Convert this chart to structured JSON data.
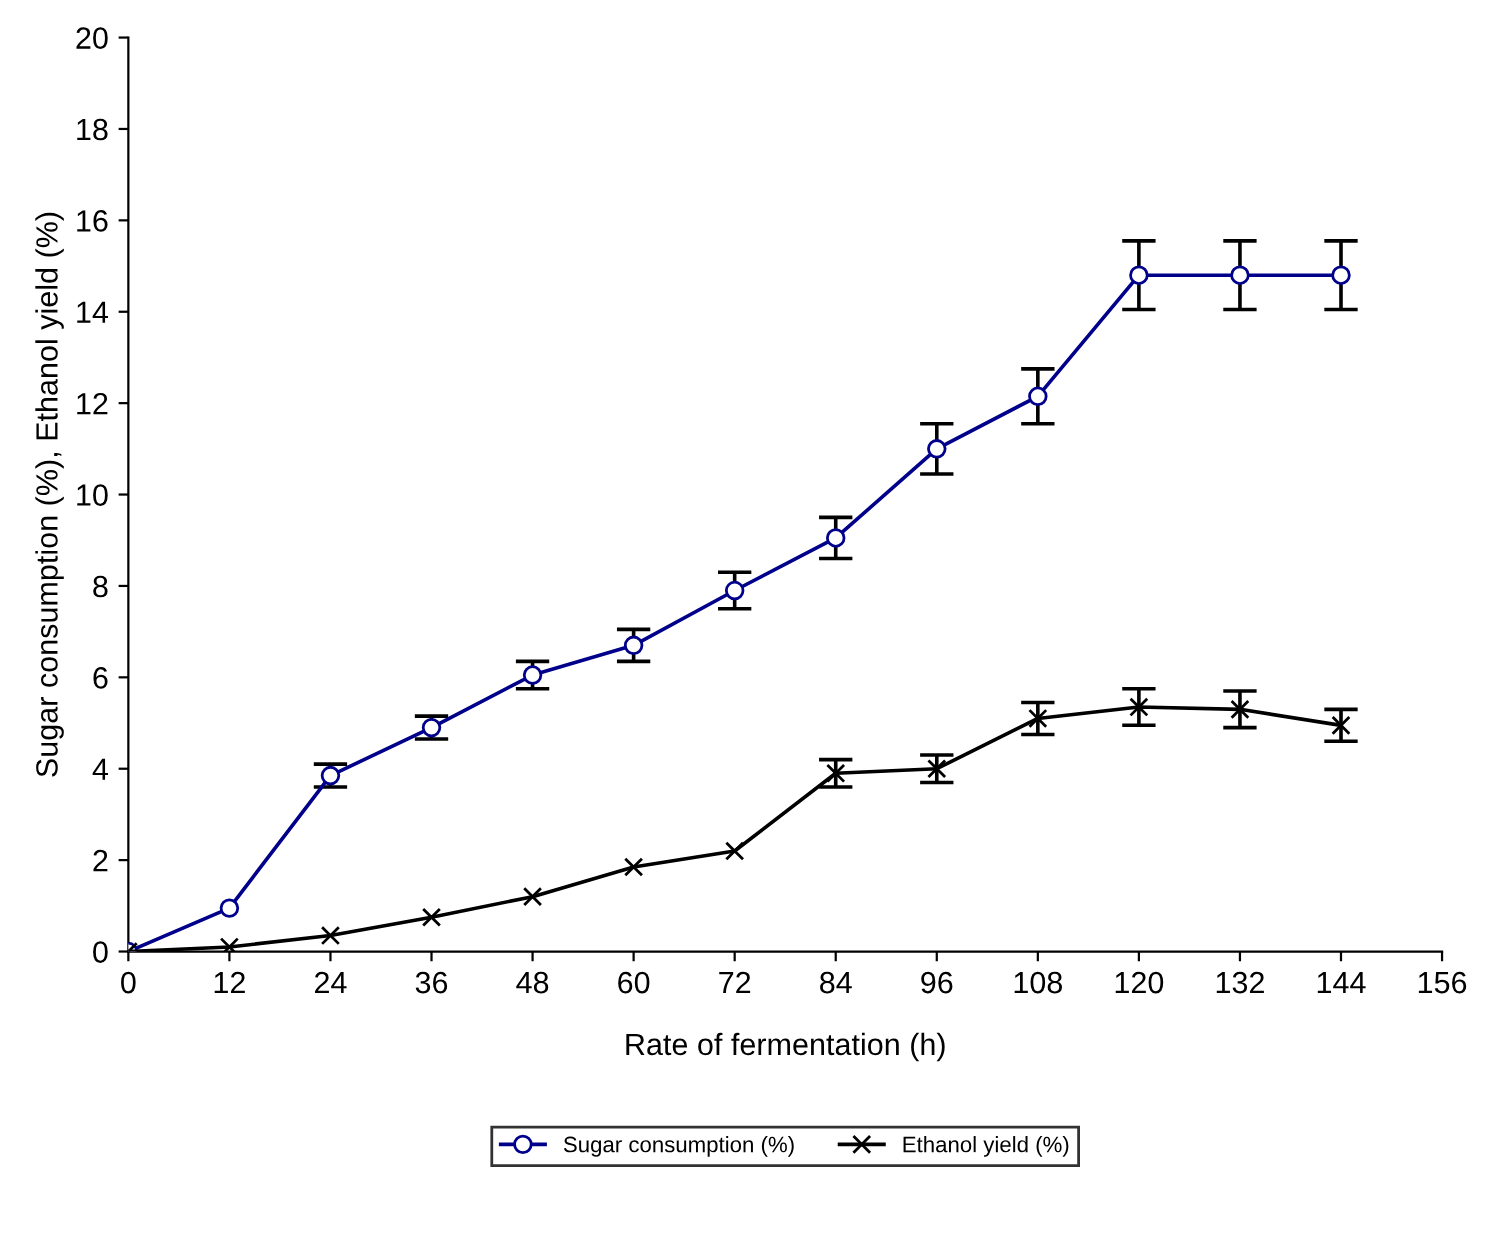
{
  "chart_data": {
    "type": "line",
    "xlabel": "Rate of fermentation (h)",
    "ylabel": "Sugar consumption (%), Ethanol yield (%)",
    "x": [
      0,
      12,
      24,
      36,
      48,
      60,
      72,
      84,
      96,
      108,
      120,
      132,
      144
    ],
    "series": [
      {
        "name": "Sugar consumption (%)",
        "color": "#00008b",
        "marker": "circle",
        "values": [
          0,
          0.95,
          3.85,
          4.9,
          6.05,
          6.7,
          7.9,
          9.05,
          11.0,
          12.15,
          14.8,
          14.8,
          14.8
        ],
        "errors": [
          null,
          null,
          0.25,
          0.25,
          0.3,
          0.35,
          0.4,
          0.45,
          0.55,
          0.6,
          0.75,
          0.75,
          0.75
        ]
      },
      {
        "name": "Ethanol yield (%)",
        "color": "#000000",
        "marker": "cross",
        "values": [
          0,
          0.1,
          0.35,
          0.75,
          1.2,
          1.85,
          2.2,
          3.9,
          4.0,
          5.1,
          5.35,
          5.3,
          4.95
        ],
        "errors": [
          null,
          null,
          null,
          null,
          null,
          null,
          null,
          0.3,
          0.3,
          0.35,
          0.4,
          0.4,
          0.35
        ]
      }
    ],
    "xlim": [
      0,
      156
    ],
    "xticks": [
      0,
      12,
      24,
      36,
      48,
      60,
      72,
      84,
      96,
      108,
      120,
      132,
      144,
      156
    ],
    "ylim": [
      0,
      20
    ],
    "yticks": [
      0,
      2,
      4,
      6,
      8,
      10,
      12,
      14,
      16,
      18,
      20
    ],
    "grid": false,
    "legend": "bottom",
    "line_style": "solid"
  }
}
